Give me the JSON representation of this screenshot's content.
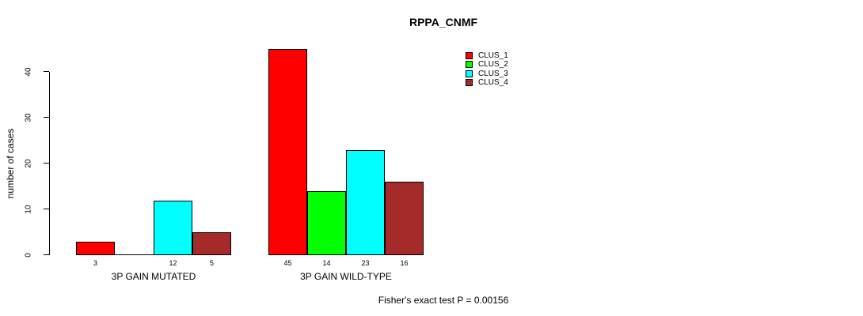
{
  "page": {
    "background": "#ffffff",
    "text_color": "#000000"
  },
  "chart_data": {
    "type": "bar",
    "title": "RPPA_CNMF",
    "xlabel": "",
    "ylabel": "number of cases",
    "categories": [
      "3P GAIN MUTATED",
      "3P GAIN WILD-TYPE"
    ],
    "series": [
      {
        "name": "CLUS_1",
        "color": "#ff0000",
        "values": [
          3,
          45
        ]
      },
      {
        "name": "CLUS_2",
        "color": "#00ff00",
        "values": [
          0,
          14
        ]
      },
      {
        "name": "CLUS_3",
        "color": "#00ffff",
        "values": [
          12,
          23
        ]
      },
      {
        "name": "CLUS_4",
        "color": "#a52a2a",
        "values": [
          5,
          16
        ]
      }
    ],
    "bar_value_labels": [
      [
        "3",
        "",
        "12",
        "5"
      ],
      [
        "45",
        "14",
        "23",
        "16"
      ]
    ],
    "yticks": [
      0,
      10,
      20,
      30,
      40
    ],
    "ylim": [
      0,
      45.5
    ],
    "grid": false,
    "legend_position": "top-right",
    "legend": [
      "CLUS_1",
      "CLUS_2",
      "CLUS_3",
      "CLUS_4"
    ],
    "bar_border_color": "#000000",
    "footnote": "Fisher's exact test P = 0.00156"
  }
}
